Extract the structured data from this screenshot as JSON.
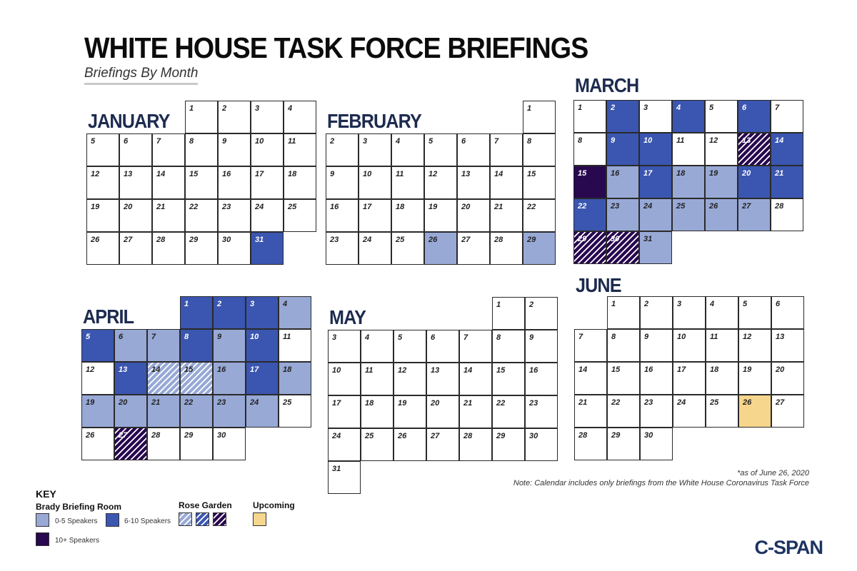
{
  "header": {
    "title": "WHITE HOUSE TASK FORCE BRIEFINGS",
    "subtitle": "Briefings By Month"
  },
  "colors": {
    "0-5": "#98a9d6",
    "6-10": "#3b56b0",
    "10+": "#28084f",
    "upcoming": "#f6d68d"
  },
  "chart_data": {
    "type": "table",
    "category_codes": {
      "0": "no briefing",
      "c1": "Brady Briefing Room 0-5 Speakers",
      "c2": "Brady Briefing Room 6-10 Speakers",
      "c3": "Brady Briefing Room 10+ Speakers",
      "r1": "Rose Garden 0-5 Speakers",
      "r2": "Rose Garden 6-10 Speakers",
      "r3": "Rose Garden 10+ Speakers",
      "up": "Upcoming"
    },
    "months": [
      {
        "name": "JANUARY",
        "first_weekday": 3,
        "days": 31,
        "briefings": {
          "31": "c2"
        }
      },
      {
        "name": "FEBRUARY",
        "first_weekday": 6,
        "days": 29,
        "briefings": {
          "26": "c1",
          "29": "c1"
        }
      },
      {
        "name": "MARCH",
        "first_weekday": 0,
        "days": 31,
        "briefings": {
          "2": "c2",
          "4": "c2",
          "6": "c2",
          "9": "c2",
          "10": "c2",
          "13": "r3",
          "14": "c2",
          "15": "c3",
          "16": "c1",
          "17": "c2",
          "18": "c1",
          "19": "c1",
          "20": "c2",
          "21": "c2",
          "22": "c2",
          "23": "c1",
          "24": "c1",
          "25": "c1",
          "26": "c1",
          "27": "c1",
          "29": "r3",
          "30": "r3",
          "31": "c1"
        }
      },
      {
        "name": "APRIL",
        "first_weekday": 3,
        "days": 30,
        "briefings": {
          "1": "c2",
          "2": "c2",
          "3": "c2",
          "4": "c1",
          "5": "c2",
          "6": "c1",
          "7": "c1",
          "8": "c2",
          "9": "c1",
          "10": "c2",
          "13": "c2",
          "14": "r1",
          "15": "r1",
          "16": "c1",
          "17": "c2",
          "18": "c1",
          "19": "c1",
          "20": "c1",
          "21": "c1",
          "22": "c1",
          "23": "c1",
          "24": "c1",
          "27": "r3"
        }
      },
      {
        "name": "MAY",
        "first_weekday": 5,
        "days": 31,
        "briefings": {}
      },
      {
        "name": "JUNE",
        "first_weekday": 1,
        "days": 30,
        "briefings": {
          "26": "up"
        }
      }
    ]
  },
  "notes": {
    "asof": "*as of June 26, 2020",
    "note": "Note: Calendar includes only briefings from the White House Coronavirus Task Force"
  },
  "key": {
    "title": "KEY",
    "brady": "Brady Briefing Room",
    "rose": "Rose Garden",
    "upcoming": "Upcoming",
    "s05": "0-5 Speakers",
    "s610": "6-10 Speakers",
    "s10": "10+ Speakers"
  },
  "logo": "C-SPAN"
}
